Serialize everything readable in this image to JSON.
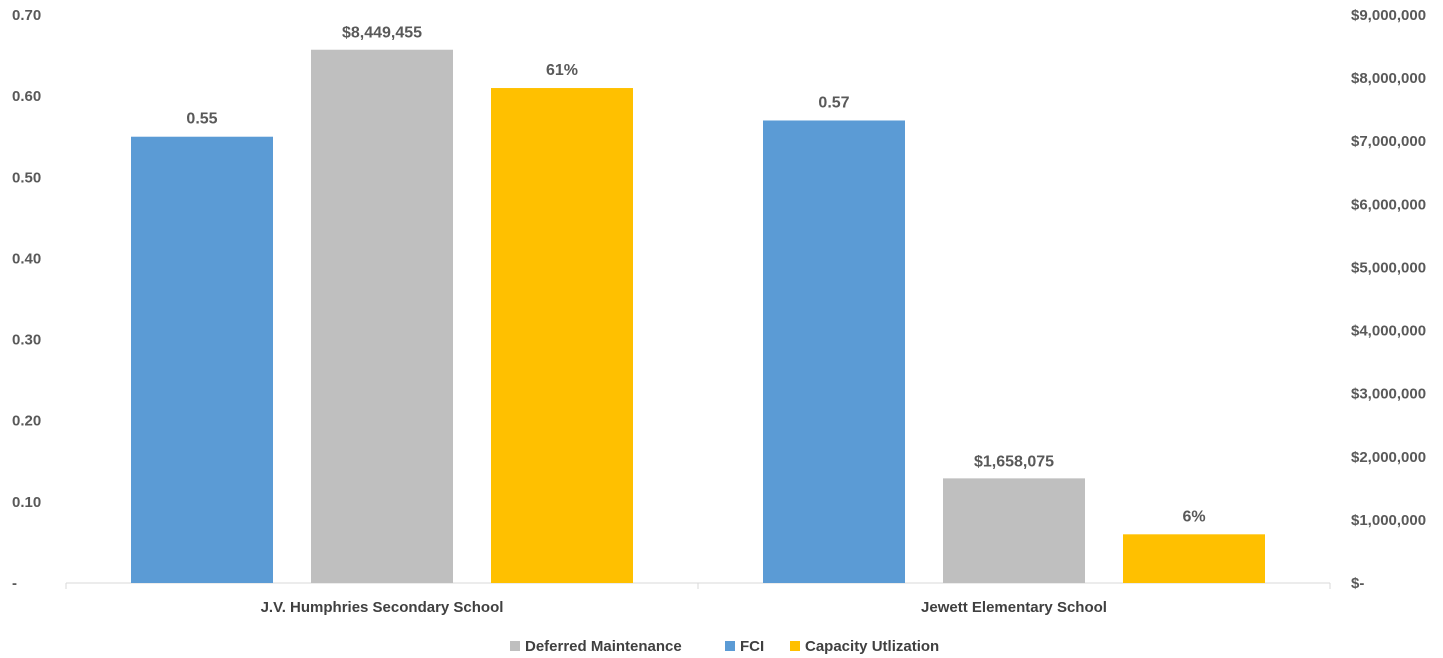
{
  "chart_data": {
    "type": "bar",
    "categories": [
      "J.V. Humphries Secondary School",
      "Jewett Elementary School"
    ],
    "series": [
      {
        "name": "Deferred Maintenance",
        "values": [
          8449455,
          1658075
        ],
        "labels": [
          "$8,449,455",
          "$1,658,075"
        ],
        "axis": "right",
        "color": "#BFBFBF"
      },
      {
        "name": "FCI",
        "values": [
          0.55,
          0.57
        ],
        "labels": [
          "0.55",
          "0.57"
        ],
        "axis": "left",
        "color": "#5B9BD5"
      },
      {
        "name": "Capacity Utlization",
        "values": [
          0.61,
          0.06
        ],
        "labels": [
          "61%",
          "6%"
        ],
        "axis": "left",
        "color": "#FFC000"
      }
    ],
    "y_left": {
      "ylim": [
        0,
        0.7
      ],
      "ticks": [
        0,
        0.1,
        0.2,
        0.3,
        0.4,
        0.5,
        0.6,
        0.7
      ],
      "tick_labels": [
        "-",
        "0.10",
        "0.20",
        "0.30",
        "0.40",
        "0.50",
        "0.60",
        "0.70"
      ]
    },
    "y_right": {
      "ylim": [
        0,
        9000000
      ],
      "ticks": [
        0,
        1000000,
        2000000,
        3000000,
        4000000,
        5000000,
        6000000,
        7000000,
        8000000,
        9000000
      ],
      "tick_labels": [
        "$-",
        "$1,000,000",
        "$2,000,000",
        "$3,000,000",
        "$4,000,000",
        "$5,000,000",
        "$6,000,000",
        "$7,000,000",
        "$8,000,000",
        "$9,000,000"
      ]
    },
    "grid": false,
    "legend": "bottom",
    "legend_order": [
      "Deferred Maintenance",
      "FCI",
      "Capacity Utlization"
    ]
  }
}
